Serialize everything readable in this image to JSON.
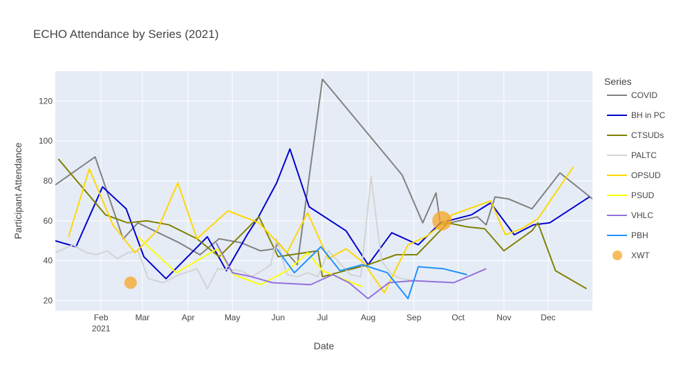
{
  "chart_data": {
    "type": "line",
    "title": "ECHO Attendance by Series (2021)",
    "xlabel": "Date",
    "ylabel": "Participant Attendance",
    "xlim": [
      "2021-01-01",
      "2021-12-31"
    ],
    "ylim": [
      15,
      135
    ],
    "x_ticks": [
      {
        "date": "2021-02-01",
        "label": "Feb",
        "label2": "2021"
      },
      {
        "date": "2021-03-01",
        "label": "Mar"
      },
      {
        "date": "2021-04-01",
        "label": "Apr"
      },
      {
        "date": "2021-05-01",
        "label": "May"
      },
      {
        "date": "2021-06-01",
        "label": "Jun"
      },
      {
        "date": "2021-07-01",
        "label": "Jul"
      },
      {
        "date": "2021-08-01",
        "label": "Aug"
      },
      {
        "date": "2021-09-01",
        "label": "Sep"
      },
      {
        "date": "2021-10-01",
        "label": "Oct"
      },
      {
        "date": "2021-11-01",
        "label": "Nov"
      },
      {
        "date": "2021-12-01",
        "label": "Dec"
      }
    ],
    "y_ticks": [
      20,
      40,
      60,
      80,
      100,
      120
    ],
    "grid": true,
    "plot_bg": "#e5ecf6",
    "legend_title": "Series",
    "legend_position": "right",
    "series": [
      {
        "name": "COVID",
        "color": "#808080",
        "kind": "line",
        "points": [
          [
            "2021-01-01",
            78
          ],
          [
            "2021-01-28",
            92
          ],
          [
            "2021-02-16",
            51
          ],
          [
            "2021-02-26",
            59
          ],
          [
            "2021-03-26",
            49
          ],
          [
            "2021-04-09",
            43
          ],
          [
            "2021-04-22",
            51
          ],
          [
            "2021-05-07",
            49
          ],
          [
            "2021-05-20",
            45
          ],
          [
            "2021-05-30",
            46
          ],
          [
            "2021-06-01",
            49
          ],
          [
            "2021-06-14",
            38
          ],
          [
            "2021-07-01",
            131
          ],
          [
            "2021-08-24",
            83
          ],
          [
            "2021-09-07",
            59
          ],
          [
            "2021-09-16",
            74
          ],
          [
            "2021-09-19",
            58
          ],
          [
            "2021-10-14",
            62
          ],
          [
            "2021-10-20",
            58
          ],
          [
            "2021-10-26",
            72
          ],
          [
            "2021-11-04",
            71
          ],
          [
            "2021-11-20",
            66
          ],
          [
            "2021-12-09",
            84
          ],
          [
            "2021-12-31",
            71
          ]
        ]
      },
      {
        "name": "BH in PC",
        "color": "#0000cd",
        "kind": "line",
        "points": [
          [
            "2021-01-01",
            50
          ],
          [
            "2021-01-15",
            47
          ],
          [
            "2021-02-02",
            77
          ],
          [
            "2021-02-18",
            66
          ],
          [
            "2021-03-02",
            42
          ],
          [
            "2021-03-17",
            31
          ],
          [
            "2021-04-14",
            52
          ],
          [
            "2021-04-27",
            35
          ],
          [
            "2021-05-11",
            53
          ],
          [
            "2021-05-18",
            61
          ],
          [
            "2021-05-31",
            79
          ],
          [
            "2021-06-09",
            96
          ],
          [
            "2021-06-22",
            67
          ],
          [
            "2021-07-17",
            55
          ],
          [
            "2021-08-01",
            38
          ],
          [
            "2021-08-17",
            54
          ],
          [
            "2021-09-04",
            48
          ],
          [
            "2021-09-19",
            59
          ],
          [
            "2021-10-10",
            63
          ],
          [
            "2021-10-23",
            69
          ],
          [
            "2021-11-08",
            53
          ],
          [
            "2021-11-21",
            58
          ],
          [
            "2021-12-02",
            59
          ],
          [
            "2021-12-29",
            72
          ]
        ]
      },
      {
        "name": "CTSUDs",
        "color": "#808000",
        "kind": "line",
        "points": [
          [
            "2021-01-03",
            91
          ],
          [
            "2021-02-04",
            63
          ],
          [
            "2021-02-19",
            59
          ],
          [
            "2021-03-04",
            60
          ],
          [
            "2021-03-19",
            58
          ],
          [
            "2021-04-07",
            51
          ],
          [
            "2021-04-22",
            42
          ],
          [
            "2021-05-19",
            62
          ],
          [
            "2021-06-01",
            42
          ],
          [
            "2021-06-28",
            45
          ],
          [
            "2021-07-01",
            32
          ],
          [
            "2021-08-01",
            38
          ],
          [
            "2021-08-20",
            43
          ],
          [
            "2021-09-03",
            43
          ],
          [
            "2021-09-24",
            59
          ],
          [
            "2021-10-07",
            57
          ],
          [
            "2021-10-19",
            56
          ],
          [
            "2021-11-01",
            45
          ],
          [
            "2021-11-20",
            55
          ],
          [
            "2021-11-24",
            59
          ],
          [
            "2021-12-06",
            35
          ],
          [
            "2021-12-27",
            26
          ]
        ]
      },
      {
        "name": "PALTC",
        "color": "#d3d3d3",
        "kind": "line",
        "points": [
          [
            "2021-01-01",
            44
          ],
          [
            "2021-01-13",
            48
          ],
          [
            "2021-01-22",
            44
          ],
          [
            "2021-01-29",
            43
          ],
          [
            "2021-02-05",
            45
          ],
          [
            "2021-02-12",
            41
          ],
          [
            "2021-02-19",
            44
          ],
          [
            "2021-02-26",
            45
          ],
          [
            "2021-03-05",
            31
          ],
          [
            "2021-03-15",
            29
          ],
          [
            "2021-03-26",
            33
          ],
          [
            "2021-04-07",
            36
          ],
          [
            "2021-04-14",
            26
          ],
          [
            "2021-04-21",
            36
          ],
          [
            "2021-05-07",
            35
          ],
          [
            "2021-05-14",
            32
          ],
          [
            "2021-05-21",
            35
          ],
          [
            "2021-05-27",
            38
          ],
          [
            "2021-05-31",
            51
          ],
          [
            "2021-06-07",
            33
          ],
          [
            "2021-06-14",
            32
          ],
          [
            "2021-06-21",
            34
          ],
          [
            "2021-06-28",
            32
          ],
          [
            "2021-07-05",
            45
          ],
          [
            "2021-07-20",
            33
          ],
          [
            "2021-07-27",
            32
          ],
          [
            "2021-08-03",
            82
          ],
          [
            "2021-08-10",
            40
          ],
          [
            "2021-08-17",
            33
          ],
          [
            "2021-08-24",
            31
          ],
          [
            "2021-09-01",
            30
          ]
        ]
      },
      {
        "name": "OPSUD",
        "color": "#ffd700",
        "kind": "line",
        "points": [
          [
            "2021-01-10",
            52
          ],
          [
            "2021-01-24",
            86
          ],
          [
            "2021-02-09",
            58
          ],
          [
            "2021-02-24",
            44
          ],
          [
            "2021-03-11",
            55
          ],
          [
            "2021-03-25",
            79
          ],
          [
            "2021-04-07",
            51
          ],
          [
            "2021-04-28",
            65
          ],
          [
            "2021-05-19",
            59
          ],
          [
            "2021-06-07",
            44
          ],
          [
            "2021-06-21",
            64
          ],
          [
            "2021-07-05",
            41
          ],
          [
            "2021-07-17",
            46
          ],
          [
            "2021-07-29",
            39
          ],
          [
            "2021-08-12",
            24
          ],
          [
            "2021-08-28",
            48
          ],
          [
            "2021-09-09",
            52
          ],
          [
            "2021-09-18",
            57
          ],
          [
            "2021-09-27",
            63
          ],
          [
            "2021-10-23",
            70
          ],
          [
            "2021-11-02",
            53
          ],
          [
            "2021-11-13",
            56
          ],
          [
            "2021-11-24",
            61
          ],
          [
            "2021-12-18",
            87
          ]
        ]
      },
      {
        "name": "PSUD",
        "color": "#ffff00",
        "kind": "line",
        "points": [
          [
            "2021-02-26",
            52
          ],
          [
            "2021-03-24",
            34
          ],
          [
            "2021-04-21",
            46
          ],
          [
            "2021-05-02",
            33
          ],
          [
            "2021-05-20",
            28
          ],
          [
            "2021-06-07",
            35
          ],
          [
            "2021-06-21",
            44
          ],
          [
            "2021-07-01",
            35
          ],
          [
            "2021-07-28",
            27
          ]
        ]
      },
      {
        "name": "VHLC",
        "color": "#9370db",
        "kind": "line",
        "points": [
          [
            "2021-04-20",
            49
          ],
          [
            "2021-05-01",
            34
          ],
          [
            "2021-05-14",
            32
          ],
          [
            "2021-05-28",
            29
          ],
          [
            "2021-06-23",
            28
          ],
          [
            "2021-07-08",
            33
          ],
          [
            "2021-07-19",
            29
          ],
          [
            "2021-08-01",
            21
          ],
          [
            "2021-08-15",
            29
          ],
          [
            "2021-09-01",
            30
          ],
          [
            "2021-09-28",
            29
          ],
          [
            "2021-10-20",
            36
          ]
        ]
      },
      {
        "name": "PBH",
        "color": "#1e90ff",
        "kind": "line",
        "points": [
          [
            "2021-05-31",
            46
          ],
          [
            "2021-06-12",
            34
          ],
          [
            "2021-06-30",
            47
          ],
          [
            "2021-07-13",
            35
          ],
          [
            "2021-07-28",
            38
          ],
          [
            "2021-08-14",
            34
          ],
          [
            "2021-08-28",
            21
          ],
          [
            "2021-09-04",
            37
          ],
          [
            "2021-09-21",
            36
          ],
          [
            "2021-10-07",
            33
          ]
        ]
      },
      {
        "name": "XWT",
        "color": "#f5a623",
        "kind": "marker",
        "points": [
          [
            "2021-02-21",
            29,
            9
          ],
          [
            "2021-09-20",
            60,
            14
          ]
        ]
      }
    ]
  }
}
